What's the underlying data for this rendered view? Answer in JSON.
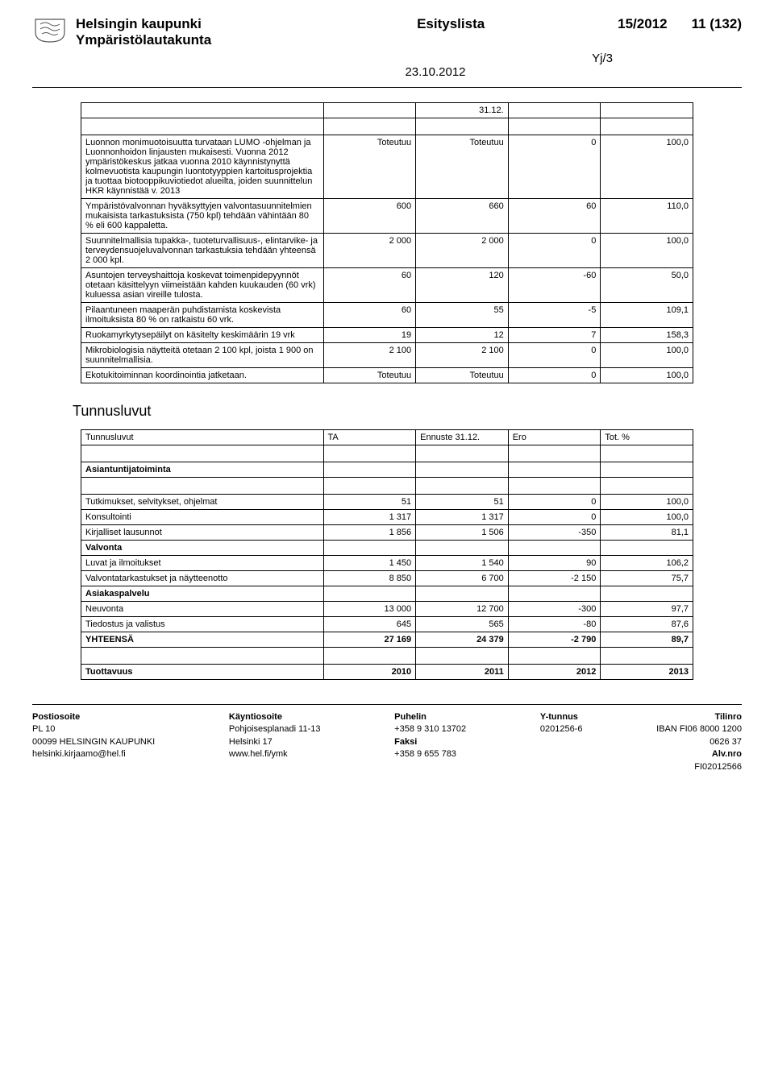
{
  "header": {
    "org": "Helsingin kaupunki",
    "board": "Ympäristölautakunta",
    "doc": "Esityslista",
    "docnum": "15/2012",
    "page": "11 (132)",
    "ref": "Yj/3",
    "date": "23.10.2012"
  },
  "table1": {
    "topright": "31.12.",
    "rows": [
      {
        "desc": "Luonnon monimuotoisuutta turvataan LUMO -ohjelman ja Luonnonhoidon linjausten mukaisesti. Vuonna 2012 ympäristökeskus jatkaa vuonna 2010 käynnistynyttä kolmevuotista kaupungin luontotyyppien kartoitusprojektia ja tuottaa biotooppikuviotiedot alueilta, joiden suunnittelun HKR käynnistää v. 2013",
        "c1": "Toteutuu",
        "c2": "Toteutuu",
        "c3": "0",
        "c4": "100,0"
      },
      {
        "desc": "Ympäristövalvonnan hyväksyttyjen valvontasuunnitelmien mukaisista tarkastuksista (750 kpl) tehdään vähintään 80 % eli 600 kappaletta.",
        "c1": "600",
        "c2": "660",
        "c3": "60",
        "c4": "110,0"
      },
      {
        "desc": "Suunnitelmallisia tupakka-, tuoteturvallisuus-, elintarvike- ja terveydensuojeluvalvonnan tarkastuksia tehdään yhteensä 2 000 kpl.",
        "c1": "2 000",
        "c2": "2 000",
        "c3": "0",
        "c4": "100,0"
      },
      {
        "desc": "Asuntojen terveyshaittoja koskevat toimenpidepyynnöt otetaan käsittelyyn viimeistään kahden kuukauden (60 vrk) kuluessa asian vireille tulosta.",
        "c1": "60",
        "c2": "120",
        "c3": "-60",
        "c4": "50,0"
      },
      {
        "desc": "Pilaantuneen maaperän puhdistamista koskevista ilmoituksista 80 % on ratkaistu 60 vrk.",
        "c1": "60",
        "c2": "55",
        "c3": "-5",
        "c4": "109,1"
      },
      {
        "desc": "Ruokamyrkytysepäilyt on käsitelty keskimäärin 19 vrk",
        "c1": "19",
        "c2": "12",
        "c3": "7",
        "c4": "158,3"
      },
      {
        "desc": "Mikrobiologisia näytteitä otetaan 2 100 kpl, joista 1 900 on suunnitelmallisia.",
        "c1": "2 100",
        "c2": "2 100",
        "c3": "0",
        "c4": "100,0"
      },
      {
        "desc": "Ekotukitoiminnan koordinointia jatketaan.",
        "c1": "Toteutuu",
        "c2": "Toteutuu",
        "c3": "0",
        "c4": "100,0"
      }
    ]
  },
  "section2_title": "Tunnusluvut",
  "table2": {
    "header": {
      "c0": "Tunnusluvut",
      "c1": "TA",
      "c2": "Ennuste 31.12.",
      "c3": "Ero",
      "c4": "Tot. %"
    },
    "groups": [
      {
        "title": "Asiantuntijatoiminta",
        "rows": [
          {
            "label": "Tutkimukset, selvitykset, ohjelmat",
            "c1": "51",
            "c2": "51",
            "c3": "0",
            "c4": "100,0"
          },
          {
            "label": "Konsultointi",
            "c1": "1 317",
            "c2": "1 317",
            "c3": "0",
            "c4": "100,0"
          },
          {
            "label": "Kirjalliset lausunnot",
            "c1": "1 856",
            "c2": "1 506",
            "c3": "-350",
            "c4": "81,1"
          }
        ]
      },
      {
        "title": "Valvonta",
        "rows": [
          {
            "label": "Luvat ja ilmoitukset",
            "c1": "1 450",
            "c2": "1 540",
            "c3": "90",
            "c4": "106,2"
          },
          {
            "label": "Valvontatarkastukset ja näytteenotto",
            "c1": "8 850",
            "c2": "6 700",
            "c3": "-2 150",
            "c4": "75,7"
          }
        ]
      },
      {
        "title": "Asiakaspalvelu",
        "rows": [
          {
            "label": "Neuvonta",
            "c1": "13 000",
            "c2": "12 700",
            "c3": "-300",
            "c4": "97,7"
          },
          {
            "label": "Tiedostus ja valistus",
            "c1": "645",
            "c2": "565",
            "c3": "-80",
            "c4": "87,6"
          },
          {
            "label": "YHTEENSÄ",
            "c1": "27 169",
            "c2": "24 379",
            "c3": "-2 790",
            "c4": "89,7"
          }
        ]
      }
    ],
    "bottom": {
      "label": "Tuottavuus",
      "c1": "2010",
      "c2": "2011",
      "c3": "2012",
      "c4": "2013"
    }
  },
  "footer": {
    "col1": {
      "a": "Postiosoite",
      "b": "PL 10",
      "c": "",
      "d": "00099 HELSINGIN KAUPUNKI",
      "e": "helsinki.kirjaamo@hel.fi"
    },
    "col2": {
      "a": "Käyntiosoite",
      "b": "Pohjoisesplanadi 11-13",
      "c": "",
      "d": "Helsinki 17",
      "e": "www.hel.fi/ymk"
    },
    "col3": {
      "a": "Puhelin",
      "b": "+358 9 310 13702",
      "c": "",
      "d": "Faksi",
      "e": "+358 9 655 783"
    },
    "col4": {
      "a": "Y-tunnus",
      "b": "0201256-6",
      "c": "",
      "d": "",
      "e": ""
    },
    "col5": {
      "a": "Tilinro",
      "b": "IBAN FI06 8000 1200",
      "c": "0626 37",
      "d": "Alv.nro",
      "e": "FI02012566"
    }
  }
}
